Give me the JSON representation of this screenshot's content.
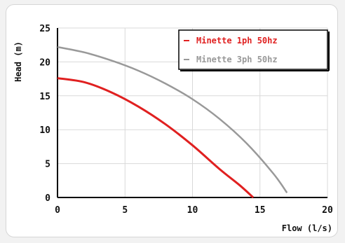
{
  "chart_data": {
    "type": "line",
    "xlabel": "Flow (l/s)",
    "ylabel": "Head (m)",
    "xlim": [
      0,
      20
    ],
    "ylim": [
      0,
      25
    ],
    "x_ticks": [
      "0",
      "5",
      "10",
      "15",
      "20"
    ],
    "y_ticks": [
      "0",
      "5",
      "10",
      "15",
      "20",
      "25"
    ],
    "grid": true,
    "legend_position": "top-right",
    "series": [
      {
        "name": "Minette 1ph 50hz",
        "color": "#e02020",
        "x": [
          0,
          2,
          4,
          6,
          8,
          10,
          12,
          13.5,
          14.5
        ],
        "y": [
          17.6,
          17.0,
          15.5,
          13.4,
          10.8,
          7.7,
          4.2,
          1.8,
          0
        ]
      },
      {
        "name": "Minette 3ph 50hz",
        "color": "#999999",
        "x": [
          0,
          2,
          4,
          6,
          8,
          10,
          12,
          14,
          16,
          17
        ],
        "y": [
          22.2,
          21.4,
          20.2,
          18.7,
          16.8,
          14.5,
          11.6,
          8.0,
          3.5,
          0.7
        ]
      }
    ]
  }
}
